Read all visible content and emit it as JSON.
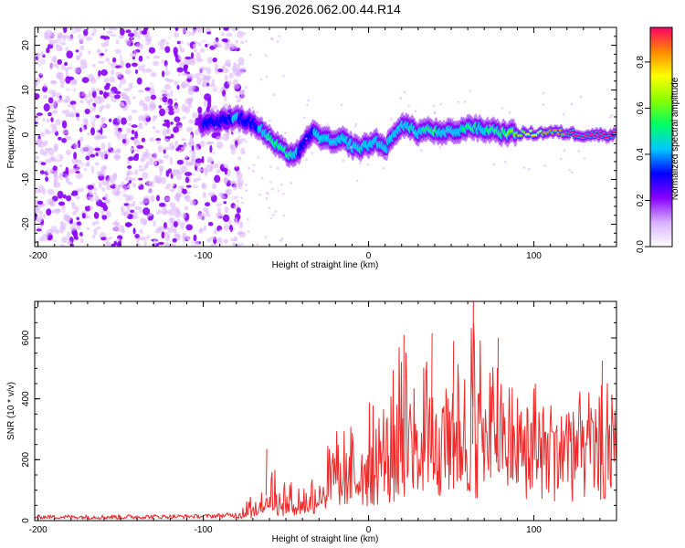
{
  "figure": {
    "title": "S196.2026.062.00.44.R14"
  },
  "chart_data": [
    {
      "type": "heatmap",
      "title": "S196.2026.062.00.44.R14",
      "xlabel": "Height of straight line (km)",
      "ylabel": "Frequency (Hz)",
      "xlim": [
        -202,
        150
      ],
      "ylim": [
        -25,
        24
      ],
      "xticks": [
        -200,
        -100,
        0,
        100
      ],
      "xtick_labels": [
        "-200",
        "-100",
        "0",
        "100"
      ],
      "yticks": [
        -20,
        -10,
        0,
        10,
        20
      ],
      "ytick_labels": [
        "-20",
        "-10",
        "0",
        "10",
        "20"
      ],
      "colorbar": {
        "label": "Normalized spectral amplitude",
        "range": [
          0,
          0.95
        ],
        "ticks": [
          0,
          0.2,
          0.4,
          0.6,
          0.8
        ],
        "tick_labels": [
          "0.0",
          "0.2",
          "0.4",
          "0.6",
          "0.8"
        ],
        "colors": [
          "#ffffff",
          "#d8b0ff",
          "#8800ff",
          "#0000ff",
          "#00c8ff",
          "#00ff66",
          "#88ff00",
          "#ffff00",
          "#ff8800",
          "#ff0066"
        ]
      },
      "noise_region_x": [
        -202,
        -76
      ],
      "noise_amplitude_range": [
        0.02,
        0.25
      ],
      "signal_ridge": {
        "x": [
          -102,
          -95,
          -90,
          -85,
          -80,
          -75,
          -70,
          -65,
          -60,
          -55,
          -50,
          -45,
          -40,
          -35,
          -30,
          -25,
          -20,
          -15,
          -10,
          -5,
          0,
          5,
          10,
          15,
          20,
          25,
          30,
          35,
          40,
          45,
          50,
          55,
          60,
          65,
          70,
          75,
          80,
          90,
          100,
          110,
          120,
          130,
          140,
          150
        ],
        "frequency_hz": [
          2.5,
          3.0,
          2.8,
          3.5,
          4.2,
          3.2,
          2.5,
          1.2,
          -0.8,
          -2.5,
          -4.0,
          -4.5,
          -3.0,
          0.5,
          -0.2,
          -1.2,
          -1.8,
          -1.0,
          -2.5,
          -3.0,
          -2.2,
          -1.5,
          -3.0,
          -0.5,
          2.5,
          1.5,
          0.5,
          1.2,
          0.8,
          0.0,
          1.0,
          0.5,
          2.0,
          1.5,
          1.0,
          1.2,
          0.5,
          0.3,
          0.3,
          0.6,
          0.4,
          0.0,
          0.0,
          0.0
        ],
        "amplitude": [
          0.25,
          0.3,
          0.32,
          0.36,
          0.38,
          0.35,
          0.3,
          0.42,
          0.5,
          0.55,
          0.52,
          0.45,
          0.3,
          0.35,
          0.4,
          0.42,
          0.45,
          0.42,
          0.4,
          0.48,
          0.45,
          0.42,
          0.4,
          0.38,
          0.45,
          0.48,
          0.45,
          0.5,
          0.48,
          0.45,
          0.42,
          0.45,
          0.5,
          0.48,
          0.45,
          0.52,
          0.55,
          0.65,
          0.72,
          0.85,
          0.9,
          0.92,
          0.95,
          0.95
        ]
      }
    },
    {
      "type": "line",
      "xlabel": "Height of straight line (km)",
      "ylabel": "SNR (10 * v/v)",
      "xlim": [
        -202,
        150
      ],
      "ylim": [
        0,
        720
      ],
      "xticks": [
        -200,
        -100,
        0,
        100
      ],
      "xtick_labels": [
        "-200",
        "-100",
        "0",
        "100"
      ],
      "yticks": [
        0,
        200,
        400,
        600
      ],
      "ytick_labels": [
        "0",
        "200",
        "400",
        "600"
      ],
      "color": "#ee2a2a",
      "series": [
        {
          "name": "SNR",
          "x": [
            -202,
            -150,
            -100,
            -80,
            -70,
            -65,
            -60,
            -50,
            -40,
            -30,
            -20,
            -10,
            0,
            10,
            20,
            30,
            40,
            50,
            60,
            70,
            80,
            90,
            100,
            110,
            120,
            130,
            140,
            150
          ],
          "mean": [
            12,
            12,
            14,
            18,
            30,
            60,
            75,
            50,
            55,
            90,
            120,
            150,
            180,
            190,
            250,
            280,
            300,
            310,
            300,
            290,
            280,
            270,
            260,
            250,
            240,
            240,
            250,
            260
          ],
          "peak": [
            20,
            22,
            22,
            30,
            90,
            150,
            230,
            140,
            110,
            200,
            300,
            320,
            390,
            420,
            600,
            480,
            610,
            560,
            720,
            600,
            500,
            420,
            480,
            400,
            450,
            420,
            460,
            470
          ]
        }
      ],
      "peak_annotations": [
        {
          "x": -62,
          "y": 235
        },
        {
          "x": 21,
          "y": 610
        },
        {
          "x": 38,
          "y": 615
        },
        {
          "x": 51,
          "y": 590
        },
        {
          "x": 63,
          "y": 720
        },
        {
          "x": 78,
          "y": 600
        },
        {
          "x": 141,
          "y": 525
        }
      ]
    }
  ]
}
